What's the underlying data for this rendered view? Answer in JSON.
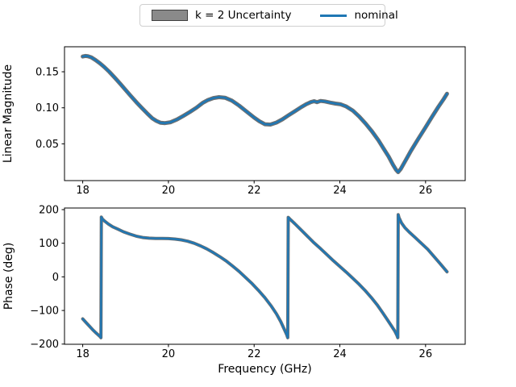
{
  "figure": {
    "background": "#ffffff",
    "colors": {
      "nominal_line": "#1f77b4",
      "band_fill": "#8a8a8a",
      "band_edge": "#404040",
      "band_stroke": "#707070",
      "axis": "#000000",
      "legend_border": "#cfcfcf"
    }
  },
  "legend": {
    "items": [
      {
        "type": "patch",
        "label": "k = 2 Uncertainty"
      },
      {
        "type": "line",
        "label": "nominal"
      }
    ]
  },
  "chart_data": [
    {
      "type": "line",
      "name": "magnitude",
      "title": "",
      "xlabel": "",
      "ylabel": "Linear Magnitude",
      "xlim": [
        17.575,
        26.925
      ],
      "ylim": [
        -0.001,
        0.1847
      ],
      "grid": false,
      "legend_position": "top-center-figure",
      "xticks": [
        {
          "v": 18,
          "label": "18"
        },
        {
          "v": 20,
          "label": "20"
        },
        {
          "v": 22,
          "label": "22"
        },
        {
          "v": 24,
          "label": "24"
        },
        {
          "v": 26,
          "label": "26"
        }
      ],
      "yticks": [
        {
          "v": 0.05,
          "label": "0.05"
        },
        {
          "v": 0.1,
          "label": "0.10"
        },
        {
          "v": 0.15,
          "label": "0.15"
        }
      ],
      "band": {
        "name": "k = 2 Uncertainty",
        "approx_halfwidth": 0.0015
      },
      "series": [
        {
          "name": "nominal",
          "x": [
            18.0,
            18.06,
            18.12,
            18.2,
            18.3,
            18.4,
            18.5,
            18.62,
            18.75,
            18.88,
            19.0,
            19.12,
            19.25,
            19.38,
            19.5,
            19.62,
            19.72,
            19.82,
            19.92,
            20.05,
            20.2,
            20.35,
            20.5,
            20.65,
            20.8,
            20.92,
            21.05,
            21.18,
            21.32,
            21.48,
            21.65,
            21.82,
            22.0,
            22.12,
            22.25,
            22.38,
            22.52,
            22.66,
            22.8,
            22.95,
            23.1,
            23.22,
            23.32,
            23.4,
            23.47,
            23.55,
            23.65,
            23.78,
            23.9,
            24.02,
            24.15,
            24.3,
            24.45,
            24.6,
            24.75,
            24.9,
            25.02,
            25.14,
            25.24,
            25.31,
            25.36,
            25.42,
            25.52,
            25.66,
            25.82,
            26.0,
            26.15,
            26.3,
            26.42,
            26.5
          ],
          "y": [
            0.1712,
            0.172,
            0.1716,
            0.17,
            0.1662,
            0.1618,
            0.1567,
            0.15,
            0.1416,
            0.133,
            0.1248,
            0.1166,
            0.108,
            0.0998,
            0.0925,
            0.0856,
            0.0818,
            0.0792,
            0.0788,
            0.08,
            0.0838,
            0.0888,
            0.0942,
            0.1,
            0.1068,
            0.1108,
            0.1135,
            0.1148,
            0.114,
            0.11,
            0.103,
            0.095,
            0.0865,
            0.0815,
            0.0772,
            0.0768,
            0.0795,
            0.084,
            0.0895,
            0.0952,
            0.101,
            0.1052,
            0.1078,
            0.1092,
            0.1078,
            0.1095,
            0.1088,
            0.1072,
            0.1058,
            0.1048,
            0.1018,
            0.0962,
            0.088,
            0.0782,
            0.0672,
            0.0548,
            0.0435,
            0.0322,
            0.021,
            0.014,
            0.0108,
            0.015,
            0.0255,
            0.0405,
            0.056,
            0.073,
            0.0875,
            0.1015,
            0.112,
            0.1195
          ]
        }
      ]
    },
    {
      "type": "line",
      "name": "phase",
      "title": "",
      "xlabel": "Frequency (GHz)",
      "ylabel": "Phase (deg)",
      "xlim": [
        17.575,
        26.925
      ],
      "ylim": [
        -200.5,
        204.8
      ],
      "grid": false,
      "xticks": [
        {
          "v": 18,
          "label": "18"
        },
        {
          "v": 20,
          "label": "20"
        },
        {
          "v": 22,
          "label": "22"
        },
        {
          "v": 24,
          "label": "24"
        },
        {
          "v": 26,
          "label": "26"
        }
      ],
      "yticks": [
        {
          "v": -200,
          "label": "−200"
        },
        {
          "v": -100,
          "label": "−100"
        },
        {
          "v": 0,
          "label": "0"
        },
        {
          "v": 100,
          "label": "100"
        },
        {
          "v": 200,
          "label": "200"
        }
      ],
      "band": {
        "name": "k = 2 Uncertainty",
        "approx_halfwidth": 3
      },
      "series": [
        {
          "name": "nominal",
          "x": [
            18.0,
            18.08,
            18.16,
            18.24,
            18.32,
            18.4,
            18.425,
            18.435,
            18.46,
            18.52,
            18.6,
            18.7,
            18.82,
            18.95,
            19.1,
            19.25,
            19.4,
            19.55,
            19.7,
            19.85,
            20.0,
            20.15,
            20.3,
            20.45,
            20.6,
            20.75,
            20.9,
            21.05,
            21.2,
            21.35,
            21.5,
            21.65,
            21.8,
            21.95,
            22.1,
            22.25,
            22.4,
            22.52,
            22.62,
            22.7,
            22.76,
            22.785,
            22.795,
            22.85,
            22.95,
            23.1,
            23.25,
            23.4,
            23.55,
            23.7,
            23.85,
            24.0,
            24.15,
            24.3,
            24.45,
            24.6,
            24.75,
            24.88,
            25.0,
            25.1,
            25.2,
            25.28,
            25.335,
            25.352,
            25.362,
            25.38,
            25.44,
            25.52,
            25.62,
            25.75,
            25.9,
            26.05,
            26.2,
            26.35,
            26.5
          ],
          "y": [
            -125,
            -136,
            -147,
            -158,
            -168,
            -177,
            -181,
            178,
            172,
            165,
            157,
            149,
            142,
            134,
            127,
            121,
            117,
            115,
            114.5,
            114.5,
            114,
            112.5,
            110,
            106,
            100,
            92,
            83,
            72,
            60,
            47,
            32,
            16,
            -2,
            -20,
            -40,
            -62,
            -87,
            -110,
            -133,
            -155,
            -172,
            -181,
            177,
            170,
            158,
            139,
            120,
            101,
            84,
            66,
            48,
            31,
            14,
            -4,
            -22,
            -42,
            -64,
            -85,
            -107,
            -126,
            -145,
            -161,
            -175,
            -181,
            185,
            176,
            160,
            146,
            133,
            118,
            100,
            82,
            60,
            38,
            15
          ]
        }
      ]
    }
  ]
}
